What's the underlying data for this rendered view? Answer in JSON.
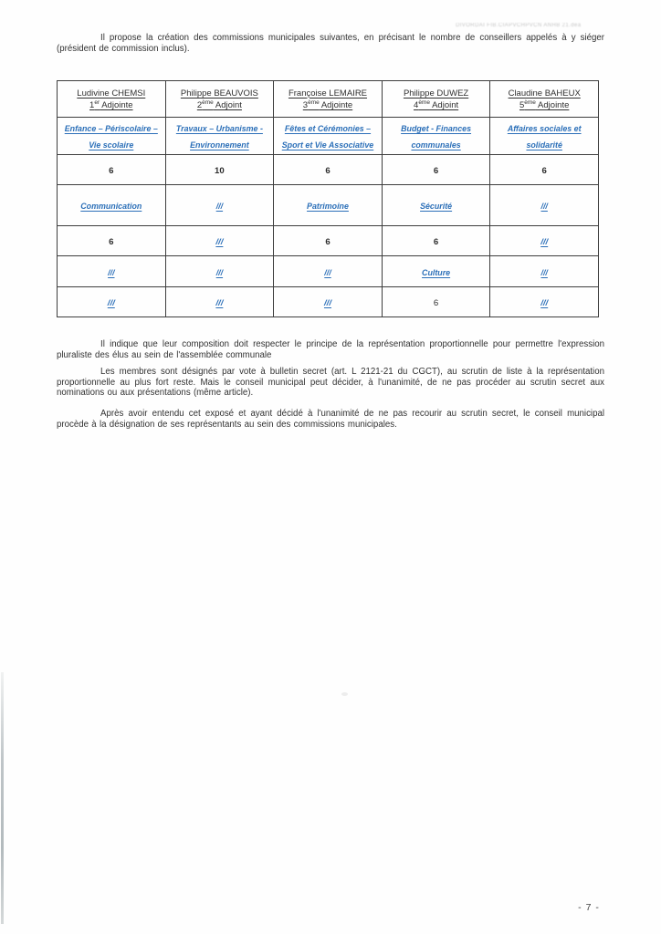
{
  "stamp_text": "DIVORDAI FIB.CIAPVCHPVCN ANHB 21.dea",
  "paragraphs": {
    "intro": "Il propose la création des commissions municipales suivantes, en précisant le nombre de conseillers appelés à y siéger (président de commission inclus).",
    "composition": "Il indique que leur composition doit respecter le principe de la représentation proportionnelle pour permettre l'expression pluraliste des élus au sein de l'assemblée communale",
    "vote": "Les membres sont désignés par vote à bulletin secret (art. L 2121-21 du CGCT), au scrutin de liste à la représentation proportionnelle au plus fort reste. Mais le conseil municipal peut décider, à l'unanimité, de ne pas procéder au scrutin secret aux nominations ou aux présentations (même article).",
    "designation": "Après avoir entendu cet exposé et ayant décidé à l'unanimité de ne pas recourir au scrutin secret, le conseil municipal procède à la désignation de ses représentants au sein des commissions municipales."
  },
  "table": {
    "header": [
      {
        "name": "Ludivine CHEMSI",
        "rank": "1",
        "rank_sup": "er",
        "role": " Adjointe"
      },
      {
        "name": "Philippe BEAUVOIS",
        "rank": "2",
        "rank_sup": "ème",
        "role": " Adjoint"
      },
      {
        "name": "Françoise LEMAIRE",
        "rank": "3",
        "rank_sup": "ème",
        "role": " Adjointe"
      },
      {
        "name": "Philippe DUWEZ",
        "rank": "4",
        "rank_sup": "ème",
        "role": " Adjoint"
      },
      {
        "name": "Claudine BAHEUX",
        "rank": "5",
        "rank_sup": "ème",
        "role": " Adjointe"
      }
    ],
    "rows": [
      {
        "type": "commission",
        "cells": [
          "Enfance – Périscolaire – Vie scolaire",
          "Travaux – Urbanisme - Environnement",
          "Fêtes et Cérémonies – Sport et Vie Associative",
          "Budget - Finances communales",
          "Affaires sociales et solidarité"
        ]
      },
      {
        "type": "count",
        "cells": [
          "6",
          "10",
          "6",
          "6",
          "6"
        ]
      },
      {
        "type": "commission",
        "cells": [
          "Communication",
          "///",
          "Patrimoine",
          "Sécurité",
          "///"
        ]
      },
      {
        "type": "count",
        "cells": [
          "6",
          "///",
          "6",
          "6",
          "///"
        ]
      },
      {
        "type": "commission",
        "cells": [
          "///",
          "///",
          "///",
          "Culture",
          "///"
        ]
      },
      {
        "type": "count",
        "cells": [
          "///",
          "///",
          "///",
          "6",
          "///"
        ]
      }
    ]
  },
  "page_number": "- 7 -",
  "colors": {
    "accent_blue": "#2b6fb8",
    "text_black": "#2e2e2e"
  }
}
